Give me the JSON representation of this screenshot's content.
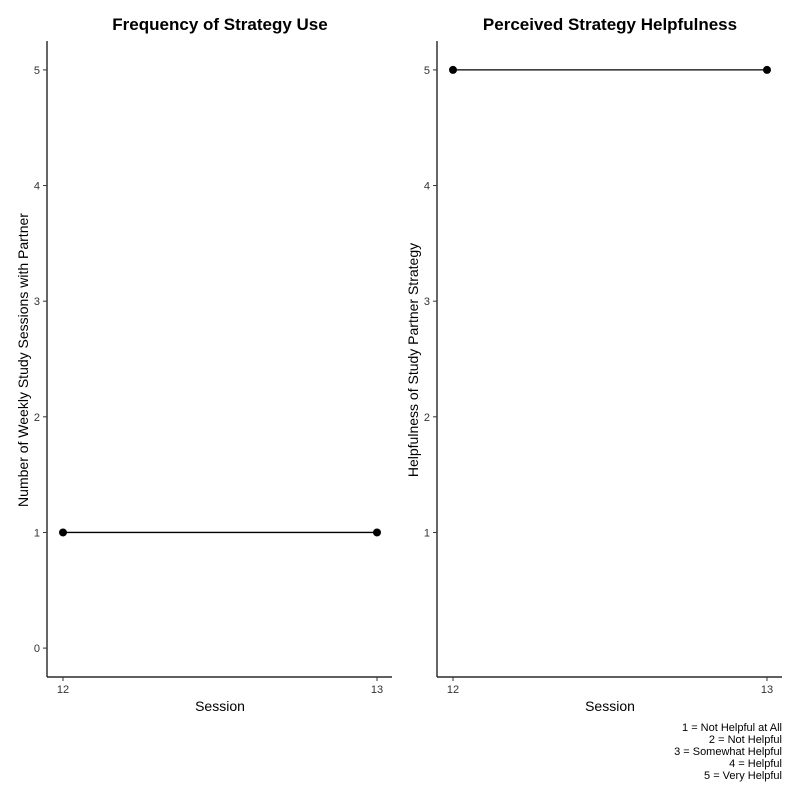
{
  "chart_data": [
    {
      "type": "line",
      "title": "Frequency of Strategy Use",
      "xlabel": "Session",
      "ylabel": "Number of Weekly Study Sessions with Partner",
      "x": [
        12,
        13
      ],
      "xticks": [
        "12",
        "13"
      ],
      "yticks": [
        "0",
        "1",
        "2",
        "3",
        "4",
        "5"
      ],
      "ylim": [
        -0.25,
        5.25
      ],
      "grid": false,
      "series": [
        {
          "values": [
            1,
            1
          ],
          "color": "#000000"
        }
      ]
    },
    {
      "type": "line",
      "title": "Perceived Strategy Helpfulness",
      "xlabel": "Session",
      "ylabel": "Helpfulness of Study Partner Strategy",
      "x": [
        12,
        13
      ],
      "xticks": [
        "12",
        "13"
      ],
      "yticks": [
        "1",
        "2",
        "3",
        "4",
        "5"
      ],
      "ylim": [
        -0.25,
        5.25
      ],
      "grid": false,
      "series": [
        {
          "values": [
            5,
            5
          ],
          "color": "#000000"
        }
      ],
      "caption": [
        "1 = Not Helpful at All",
        "2 = Not Helpful",
        "3 = Somewhat Helpful",
        "4 = Helpful",
        "5 = Very Helpful"
      ]
    }
  ]
}
